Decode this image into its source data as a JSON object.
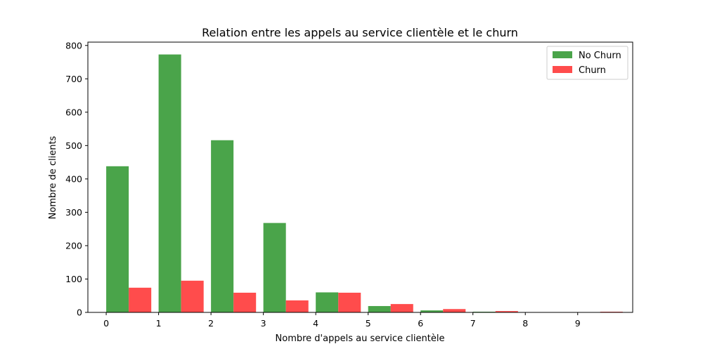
{
  "chart_data": {
    "type": "bar",
    "title": "Relation entre les appels au service clientèle et le churn",
    "xlabel": "Nombre d'appels au service clientèle",
    "ylabel": "Nombre de clients",
    "x_ticks": [
      "0",
      "1",
      "2",
      "3",
      "4",
      "5",
      "6",
      "7",
      "8",
      "9"
    ],
    "y_ticks": [
      "0",
      "100",
      "200",
      "300",
      "400",
      "500",
      "600",
      "700",
      "800"
    ],
    "xlim": [
      -0.35,
      10.05
    ],
    "ylim": [
      0,
      810
    ],
    "grid": false,
    "legend_position": "top-right",
    "series": [
      {
        "name": "No Churn",
        "color": "#4aa44a",
        "x": [
          0,
          1,
          2,
          3,
          4,
          5,
          6,
          7,
          8,
          9
        ],
        "values": [
          438,
          773,
          516,
          268,
          60,
          19,
          6,
          2,
          0,
          0
        ]
      },
      {
        "name": "Churn",
        "color": "#ff4c4c",
        "x": [
          0,
          1,
          2,
          3,
          4,
          5,
          6,
          7,
          8,
          9
        ],
        "values": [
          74,
          95,
          59,
          36,
          59,
          25,
          10,
          4,
          1,
          2
        ]
      }
    ]
  }
}
